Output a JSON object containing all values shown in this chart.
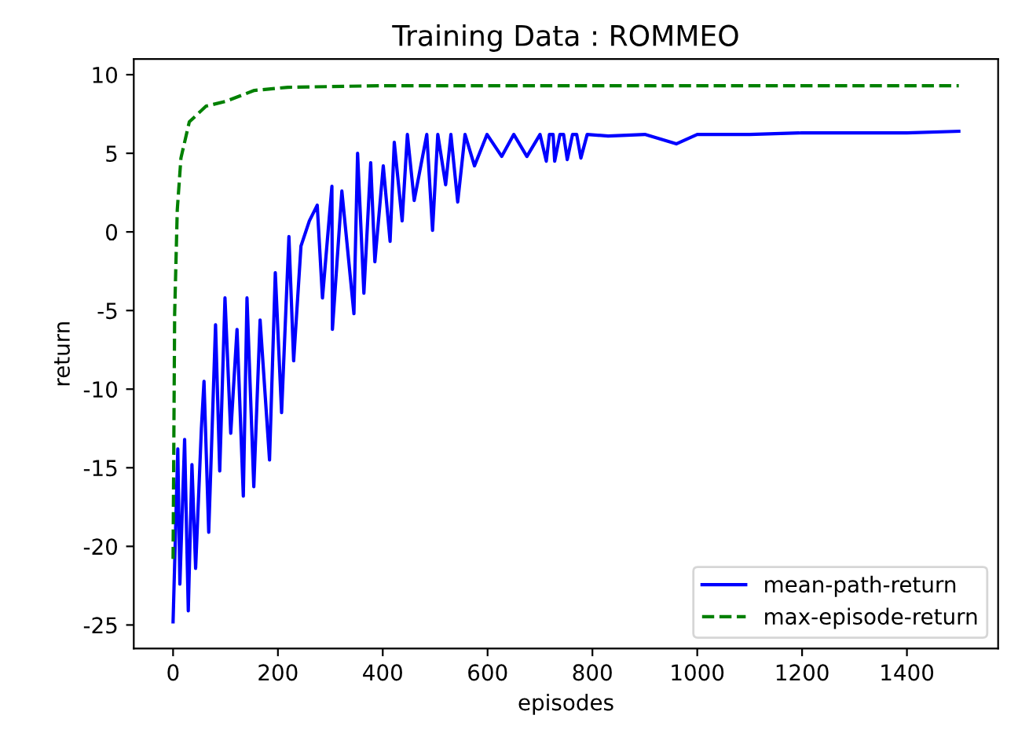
{
  "chart_data": {
    "type": "line",
    "title": "Training Data : ROMMEO",
    "xlabel": "episodes",
    "ylabel": "return",
    "xlim": [
      -75,
      1574
    ],
    "ylim": [
      -26.5,
      11.0
    ],
    "xticks": [
      0,
      200,
      400,
      600,
      800,
      1000,
      1200,
      1400
    ],
    "yticks": [
      -25,
      -20,
      -15,
      -10,
      -5,
      0,
      5,
      10
    ],
    "grid": false,
    "legend": "bottom right",
    "series": [
      {
        "name": "mean-path-return",
        "color": "#0000ff",
        "line_style": "solid",
        "x": [
          0,
          9,
          13,
          22,
          29,
          36,
          43,
          54,
          59,
          68,
          81,
          89,
          99,
          110,
          122,
          134,
          141,
          154,
          166,
          184,
          195,
          207,
          221,
          230,
          244,
          260,
          275,
          285,
          303,
          304,
          322,
          345,
          352,
          364,
          377,
          385,
          401,
          414,
          422,
          437,
          447,
          460,
          484,
          495,
          505,
          520,
          530,
          543,
          557,
          575,
          599,
          627,
          650,
          675,
          700,
          712,
          718,
          725,
          728,
          738,
          745,
          752,
          762,
          770,
          778,
          790,
          830,
          900,
          960,
          1000,
          1100,
          1200,
          1300,
          1400,
          1499
        ],
        "values": [
          -24.8,
          -13.8,
          -22.4,
          -13.2,
          -24.1,
          -14.8,
          -21.4,
          -12.5,
          -9.5,
          -19.1,
          -5.9,
          -15.2,
          -4.2,
          -12.8,
          -6.2,
          -16.8,
          -4.2,
          -16.2,
          -5.6,
          -14.5,
          -2.6,
          -11.5,
          -0.3,
          -8.2,
          -0.9,
          0.7,
          1.7,
          -4.2,
          2.9,
          -6.2,
          2.6,
          -5.2,
          5.0,
          -3.9,
          4.4,
          -1.9,
          4.2,
          -0.6,
          5.7,
          0.7,
          6.2,
          2.0,
          6.2,
          0.1,
          6.2,
          3.0,
          6.2,
          1.9,
          6.2,
          4.2,
          6.2,
          4.8,
          6.2,
          4.8,
          6.2,
          4.5,
          6.2,
          6.2,
          4.5,
          6.2,
          6.2,
          4.6,
          6.2,
          6.2,
          4.7,
          6.2,
          6.1,
          6.2,
          5.6,
          6.2,
          6.2,
          6.3,
          6.3,
          6.3,
          6.4
        ]
      },
      {
        "name": "max-episode-return",
        "color": "#008000",
        "line_style": "dashed",
        "x": [
          0,
          3,
          8,
          15,
          31,
          63,
          100,
          155,
          219,
          400,
          800,
          1200,
          1499
        ],
        "values": [
          -20.8,
          -5.2,
          1.4,
          4.7,
          7.0,
          8.0,
          8.3,
          9.0,
          9.2,
          9.3,
          9.3,
          9.3,
          9.3
        ]
      }
    ]
  }
}
